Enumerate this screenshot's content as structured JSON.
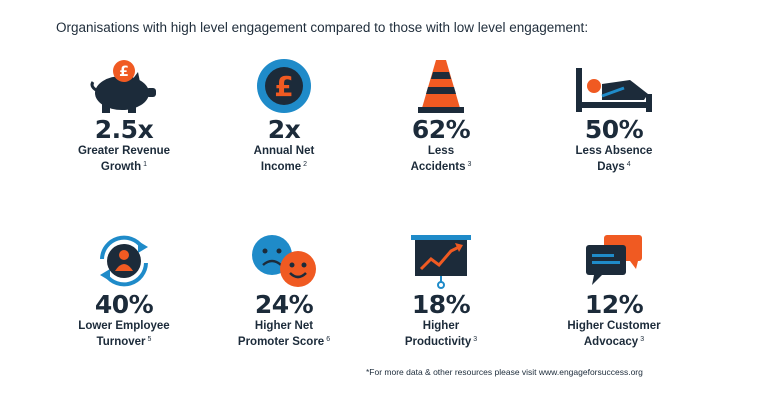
{
  "title": "Organisations with high level engagement compared to those with low level engagement:",
  "colors": {
    "navy": "#1c2b3a",
    "orange": "#f05a22",
    "blue": "#1f8bc9"
  },
  "stats": [
    {
      "icon": "piggy-bank-icon",
      "value": "2.5x",
      "line1": "Greater Revenue",
      "line2": "Growth",
      "ref": "1"
    },
    {
      "icon": "pound-coin-icon",
      "value": "2x",
      "line1": "Annual Net",
      "line2": "Income",
      "ref": "2"
    },
    {
      "icon": "traffic-cone-icon",
      "value": "62%",
      "line1": "Less",
      "line2": "Accidents",
      "ref": "3"
    },
    {
      "icon": "bed-icon",
      "value": "50%",
      "line1": "Less Absence",
      "line2": "Days",
      "ref": "4"
    },
    {
      "icon": "employee-cycle-icon",
      "value": "40%",
      "line1": "Lower Employee",
      "line2": "Turnover",
      "ref": "5"
    },
    {
      "icon": "faces-icon",
      "value": "24%",
      "line1": "Higher Net",
      "line2": "Promoter Score",
      "ref": "6"
    },
    {
      "icon": "presentation-chart-icon",
      "value": "18%",
      "line1": "Higher",
      "line2": "Productivity",
      "ref": "3"
    },
    {
      "icon": "speech-bubbles-icon",
      "value": "12%",
      "line1": "Higher Customer",
      "line2": "Advocacy",
      "ref": "3"
    }
  ],
  "footnote": "*For more data & other resources please visit www.engageforsuccess.org"
}
